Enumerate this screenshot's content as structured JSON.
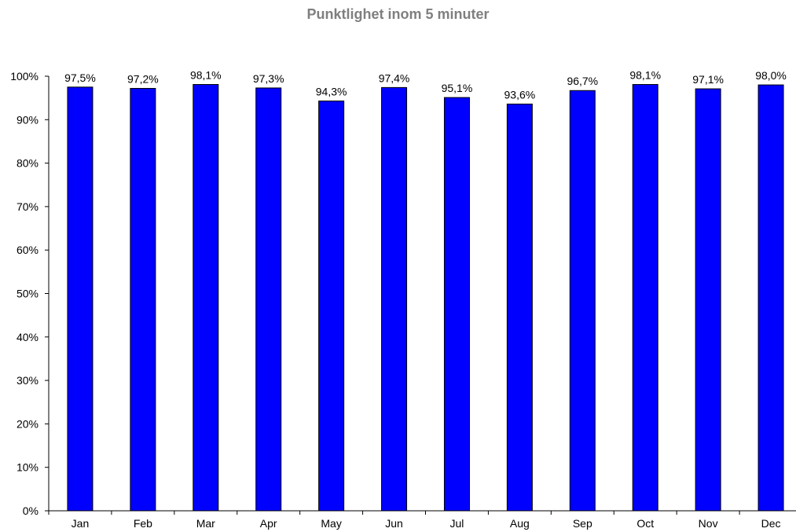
{
  "chart_data": {
    "type": "bar",
    "title": "Punktlighet inom 5 minuter",
    "categories": [
      "Jan",
      "Feb",
      "Mar",
      "Apr",
      "May",
      "Jun",
      "Jul",
      "Aug",
      "Sep",
      "Oct",
      "Nov",
      "Dec"
    ],
    "values": [
      97.5,
      97.2,
      98.1,
      97.3,
      94.3,
      97.4,
      95.1,
      93.6,
      96.7,
      98.1,
      97.1,
      98.0
    ],
    "data_labels": [
      "97,5%",
      "97,2%",
      "98,1%",
      "97,3%",
      "94,3%",
      "97,4%",
      "95,1%",
      "93,6%",
      "96,7%",
      "98,1%",
      "97,1%",
      "98,0%"
    ],
    "y_ticks": [
      "0%",
      "10%",
      "20%",
      "30%",
      "40%",
      "50%",
      "60%",
      "70%",
      "80%",
      "90%",
      "100%"
    ],
    "ylim": [
      0,
      100
    ],
    "xlabel": "",
    "ylabel": "",
    "grid": false,
    "legend": "none",
    "colors": {
      "bar": "#0000ff",
      "bar_border": "#000000",
      "axis": "#000000",
      "title": "#7f7f7f"
    }
  }
}
